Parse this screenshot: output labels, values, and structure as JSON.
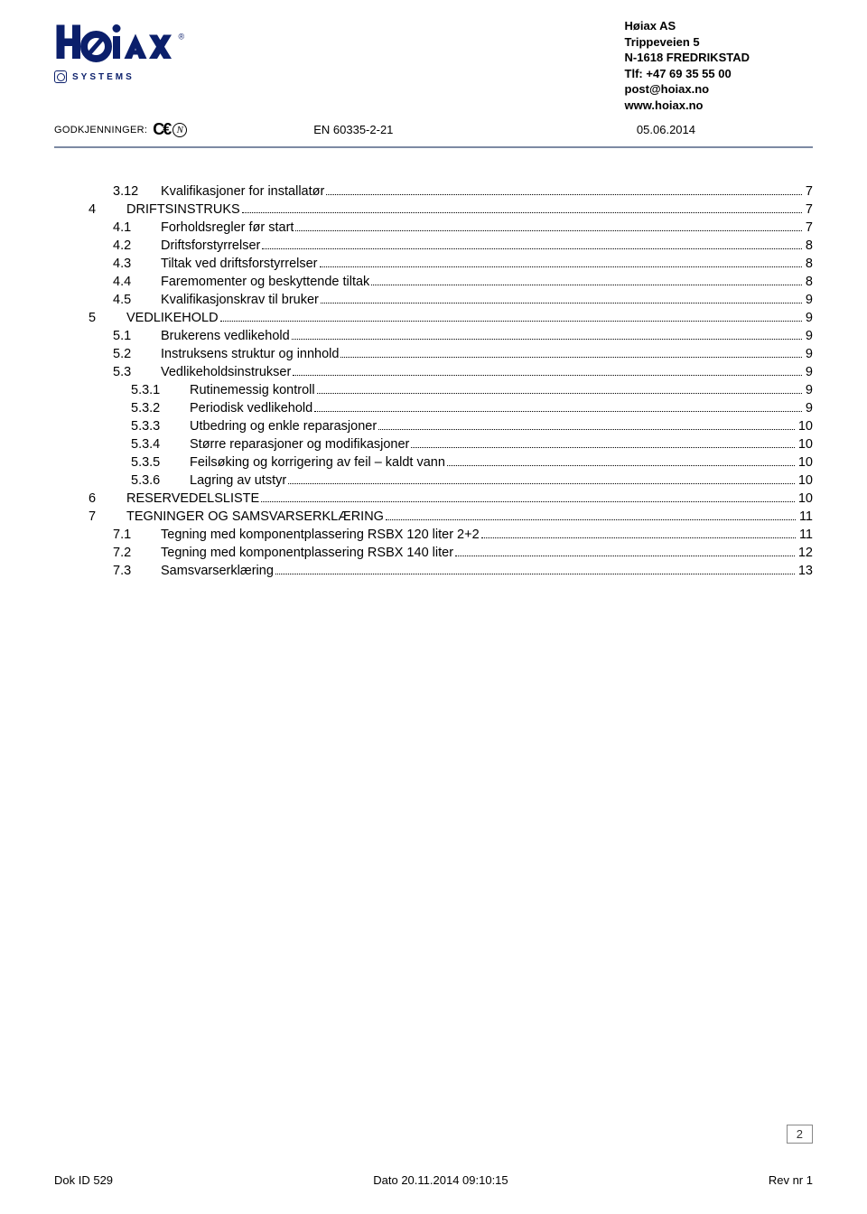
{
  "company": {
    "name": "Høiax AS",
    "address1": "Trippeveien 5",
    "address2": "N-1618 FREDRIKSTAD",
    "phone": "Tlf: +47 69 35 55 00",
    "email": "post@hoiax.no",
    "web": "www.hoiax.no"
  },
  "logo": {
    "text": "Høiax",
    "registered": "®",
    "color": "#0b1f6b",
    "systems": "SYSTEMS"
  },
  "approval": {
    "label": "GODKJENNINGER:",
    "ce": "C€",
    "n": "N",
    "standard": "EN 60335-2-21",
    "date": "05.06.2014"
  },
  "toc": [
    {
      "num": "3.12",
      "title": "Kvalifikasjoner for installatør",
      "page": "7",
      "indent": 1
    },
    {
      "num": "4",
      "title": "DRIFTSINSTRUKS",
      "page": "7",
      "indent": 0
    },
    {
      "num": "4.1",
      "title": "Forholdsregler før start",
      "page": "7",
      "indent": 1
    },
    {
      "num": "4.2",
      "title": "Driftsforstyrrelser",
      "page": "8",
      "indent": 1
    },
    {
      "num": "4.3",
      "title": "Tiltak ved driftsforstyrrelser",
      "page": "8",
      "indent": 1
    },
    {
      "num": "4.4",
      "title": "Faremomenter og beskyttende tiltak",
      "page": "8",
      "indent": 1
    },
    {
      "num": "4.5",
      "title": "Kvalifikasjonskrav til bruker",
      "page": "9",
      "indent": 1
    },
    {
      "num": "5",
      "title": "VEDLIKEHOLD",
      "page": "9",
      "indent": 0
    },
    {
      "num": "5.1",
      "title": "Brukerens vedlikehold",
      "page": "9",
      "indent": 1
    },
    {
      "num": "5.2",
      "title": "Instruksens struktur og innhold",
      "page": "9",
      "indent": 1
    },
    {
      "num": "5.3",
      "title": "Vedlikeholdsinstrukser",
      "page": "9",
      "indent": 1
    },
    {
      "num": "5.3.1",
      "title": "Rutinemessig kontroll",
      "page": "9",
      "indent": 2
    },
    {
      "num": "5.3.2",
      "title": "Periodisk vedlikehold",
      "page": "9",
      "indent": 2
    },
    {
      "num": "5.3.3",
      "title": "Utbedring og enkle reparasjoner",
      "page": "10",
      "indent": 2
    },
    {
      "num": "5.3.4",
      "title": "Større reparasjoner og modifikasjoner",
      "page": "10",
      "indent": 2
    },
    {
      "num": "5.3.5",
      "title": "Feilsøking og korrigering av feil – kaldt vann",
      "page": "10",
      "indent": 2
    },
    {
      "num": "5.3.6",
      "title": "Lagring av utstyr",
      "page": "10",
      "indent": 2
    },
    {
      "num": "6",
      "title": "RESERVEDELSLISTE",
      "page": "10",
      "indent": 0
    },
    {
      "num": "7",
      "title": "TEGNINGER OG SAMSVARSERKLÆRING",
      "page": "11",
      "indent": 0
    },
    {
      "num": "7.1",
      "title": "Tegning med komponentplassering RSBX 120 liter 2+2",
      "page": "11",
      "indent": 1
    },
    {
      "num": "7.2",
      "title": "Tegning med komponentplassering RSBX 140 liter",
      "page": "12",
      "indent": 1
    },
    {
      "num": "7.3",
      "title": "Samsvarserklæring",
      "page": "13",
      "indent": 1
    }
  ],
  "pageNumber": "2",
  "footer": {
    "left": "Dok ID 529",
    "center": "Dato 20.11.2014 09:10:15",
    "right": "Rev nr 1"
  }
}
